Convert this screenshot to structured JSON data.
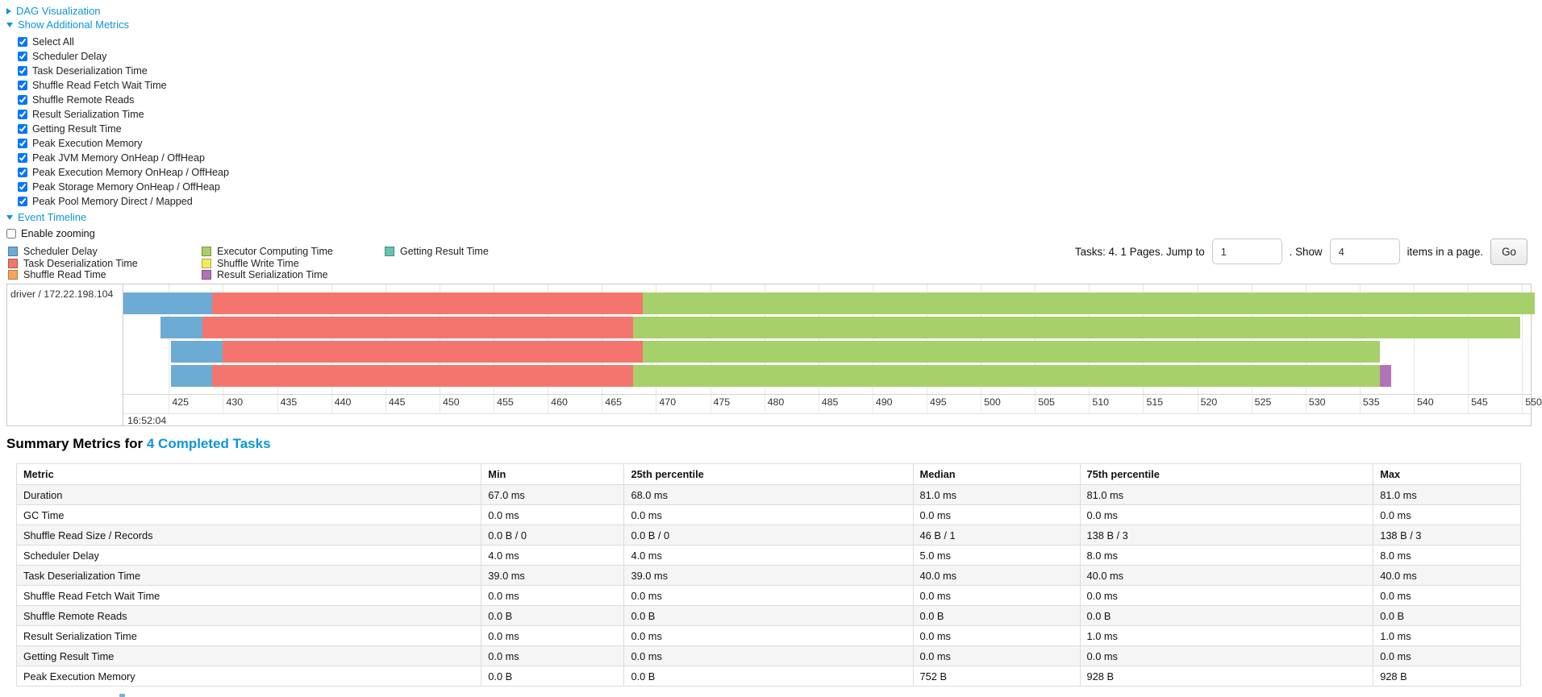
{
  "colors": {
    "link": "#0e95d6",
    "scheduler_delay": "#6cabd4",
    "task_deserialization": "#f4756d",
    "shuffle_read": "#f9a65a",
    "executor_computing": "#a6d06a",
    "shuffle_write": "#f4e95b",
    "result_serialization": "#b172b8",
    "getting_result": "#66c2b2"
  },
  "toggles": {
    "dag_visualization": "DAG Visualization",
    "show_additional_metrics": "Show Additional Metrics",
    "event_timeline": "Event Timeline"
  },
  "metric_checkboxes": [
    {
      "label": "Select All",
      "checked": true
    },
    {
      "label": "Scheduler Delay",
      "checked": true
    },
    {
      "label": "Task Deserialization Time",
      "checked": true
    },
    {
      "label": "Shuffle Read Fetch Wait Time",
      "checked": true
    },
    {
      "label": "Shuffle Remote Reads",
      "checked": true
    },
    {
      "label": "Result Serialization Time",
      "checked": true
    },
    {
      "label": "Getting Result Time",
      "checked": true
    },
    {
      "label": "Peak Execution Memory",
      "checked": true
    },
    {
      "label": "Peak JVM Memory OnHeap / OffHeap",
      "checked": true
    },
    {
      "label": "Peak Execution Memory OnHeap / OffHeap",
      "checked": true
    },
    {
      "label": "Peak Storage Memory OnHeap / OffHeap",
      "checked": true
    },
    {
      "label": "Peak Pool Memory Direct / Mapped",
      "checked": true
    }
  ],
  "enable_zooming": {
    "label": "Enable zooming",
    "checked": false
  },
  "legend": {
    "columns": [
      [
        {
          "label": "Scheduler Delay",
          "color": "#6cabd4"
        },
        {
          "label": "Task Deserialization Time",
          "color": "#f4756d"
        },
        {
          "label": "Shuffle Read Time",
          "color": "#f9a65a"
        }
      ],
      [
        {
          "label": "Executor Computing Time",
          "color": "#a6d06a"
        },
        {
          "label": "Shuffle Write Time",
          "color": "#f4e95b"
        },
        {
          "label": "Result Serialization Time",
          "color": "#b172b8"
        }
      ],
      [
        {
          "label": "Getting Result Time",
          "color": "#66c2b2"
        }
      ]
    ]
  },
  "pagination": {
    "tasks_text": "Tasks: 4. 1 Pages. Jump to",
    "jump_value": "1",
    "show_text": ". Show",
    "show_value": "4",
    "items_text": "items in a page.",
    "go_label": "Go"
  },
  "chart_data": {
    "type": "timeline",
    "executor_label": "driver / 172.22.198.104",
    "x_axis": {
      "domain": [
        420.8,
        550.8
      ],
      "tick_start": 425,
      "tick_end": 550,
      "tick_step": 5,
      "time_label": "16:52:04",
      "grid": true
    },
    "tasks": [
      {
        "segments": [
          {
            "name": "Scheduler Delay",
            "color": "#6cabd4",
            "start": 420.8,
            "end": 429.0
          },
          {
            "name": "Task Deserialization Time",
            "color": "#f4756d",
            "start": 429.0,
            "end": 468.8
          },
          {
            "name": "Executor Computing Time",
            "color": "#a6d06a",
            "start": 468.8,
            "end": 551.2
          }
        ]
      },
      {
        "segments": [
          {
            "name": "Scheduler Delay",
            "color": "#6cabd4",
            "start": 424.2,
            "end": 428.1
          },
          {
            "name": "Task Deserialization Time",
            "color": "#f4756d",
            "start": 428.1,
            "end": 467.9
          },
          {
            "name": "Executor Computing Time",
            "color": "#a6d06a",
            "start": 467.9,
            "end": 549.8
          }
        ]
      },
      {
        "segments": [
          {
            "name": "Scheduler Delay",
            "color": "#6cabd4",
            "start": 425.2,
            "end": 430.0
          },
          {
            "name": "Task Deserialization Time",
            "color": "#f4756d",
            "start": 430.0,
            "end": 468.8
          },
          {
            "name": "Executor Computing Time",
            "color": "#a6d06a",
            "start": 468.8,
            "end": 536.9
          }
        ]
      },
      {
        "segments": [
          {
            "name": "Scheduler Delay",
            "color": "#6cabd4",
            "start": 425.2,
            "end": 429.0
          },
          {
            "name": "Task Deserialization Time",
            "color": "#f4756d",
            "start": 429.0,
            "end": 467.9
          },
          {
            "name": "Executor Computing Time",
            "color": "#a6d06a",
            "start": 467.9,
            "end": 536.9
          },
          {
            "name": "Result Serialization Time",
            "color": "#b172b8",
            "start": 536.9,
            "end": 537.9
          }
        ]
      }
    ]
  },
  "summary": {
    "title_prefix": "Summary Metrics for",
    "title_link": "4 Completed Tasks",
    "headers": [
      "Metric",
      "Min",
      "25th percentile",
      "Median",
      "75th percentile",
      "Max"
    ],
    "col_widths": [
      "30.9%",
      "9.5%",
      "19.2%",
      "11.1%",
      "19.5%",
      "9.8%"
    ],
    "rows": [
      [
        "Duration",
        "67.0 ms",
        "68.0 ms",
        "81.0 ms",
        "81.0 ms",
        "81.0 ms"
      ],
      [
        "GC Time",
        "0.0 ms",
        "0.0 ms",
        "0.0 ms",
        "0.0 ms",
        "0.0 ms"
      ],
      [
        "Shuffle Read Size / Records",
        "0.0 B / 0",
        "0.0 B / 0",
        "46 B / 1",
        "138 B / 3",
        "138 B / 3"
      ],
      [
        "Scheduler Delay",
        "4.0 ms",
        "4.0 ms",
        "5.0 ms",
        "8.0 ms",
        "8.0 ms"
      ],
      [
        "Task Deserialization Time",
        "39.0 ms",
        "39.0 ms",
        "40.0 ms",
        "40.0 ms",
        "40.0 ms"
      ],
      [
        "Shuffle Read Fetch Wait Time",
        "0.0 ms",
        "0.0 ms",
        "0.0 ms",
        "0.0 ms",
        "0.0 ms"
      ],
      [
        "Shuffle Remote Reads",
        "0.0 B",
        "0.0 B",
        "0.0 B",
        "0.0 B",
        "0.0 B"
      ],
      [
        "Result Serialization Time",
        "0.0 ms",
        "0.0 ms",
        "0.0 ms",
        "1.0 ms",
        "1.0 ms"
      ],
      [
        "Getting Result Time",
        "0.0 ms",
        "0.0 ms",
        "0.0 ms",
        "0.0 ms",
        "0.0 ms"
      ],
      [
        "Peak Execution Memory",
        "0.0 B",
        "0.0 B",
        "752 B",
        "928 B",
        "928 B"
      ]
    ]
  }
}
